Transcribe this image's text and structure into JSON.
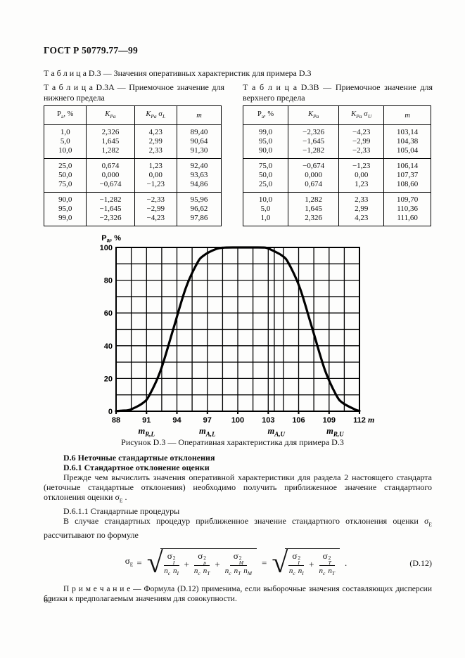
{
  "page": {
    "header": "ГОСТ Р 50779.77—99",
    "number": "62"
  },
  "table_d3_caption": "Т а б л и ц а  D.3 — Значения оперативных характеристик для примера D.3",
  "tables": [
    {
      "caption": "Т а б л и ц а  D.3A — Приемочное значение для нижнего предела",
      "headers": [
        [
          {
            "t": "P"
          },
          {
            "t": "a",
            "sub": true
          },
          {
            "t": ",  %"
          }
        ],
        [
          {
            "t": "K",
            "i": true
          },
          {
            "t": "Pa",
            "sub": true,
            "i": true
          }
        ],
        [
          {
            "t": "K",
            "i": true
          },
          {
            "t": "Pa",
            "sub": true,
            "i": true
          },
          {
            "t": " σ"
          },
          {
            "t": "L",
            "sub": true,
            "i": true
          }
        ],
        [
          {
            "t": "m",
            "i": true
          }
        ]
      ],
      "groups": [
        [
          [
            "1,0",
            "2,326",
            "4,23",
            "89,40"
          ],
          [
            "5,0",
            "1,645",
            "2,99",
            "90,64"
          ],
          [
            "10,0",
            "1,282",
            "2,33",
            "91,30"
          ]
        ],
        [
          [
            "25,0",
            "0,674",
            "1,23",
            "92,40"
          ],
          [
            "50,0",
            "0,000",
            "0,00",
            "93,63"
          ],
          [
            "75,0",
            "−0,674",
            "−1,23",
            "94,86"
          ]
        ],
        [
          [
            "90,0",
            "−1,282",
            "−2,33",
            "95,96"
          ],
          [
            "95,0",
            "−1,645",
            "−2,99",
            "96,62"
          ],
          [
            "99,0",
            "−2,326",
            "−4,23",
            "97,86"
          ]
        ]
      ]
    },
    {
      "caption": "Т а б л и ц а  D.3B — Приемочное значение для верхнего предела",
      "headers": [
        [
          {
            "t": "P"
          },
          {
            "t": "a",
            "sub": true
          },
          {
            "t": ",  %"
          }
        ],
        [
          {
            "t": "K",
            "i": true
          },
          {
            "t": "Pa",
            "sub": true,
            "i": true
          }
        ],
        [
          {
            "t": "K",
            "i": true
          },
          {
            "t": "Pa",
            "sub": true,
            "i": true
          },
          {
            "t": " σ"
          },
          {
            "t": "U",
            "sub": true,
            "i": true
          }
        ],
        [
          {
            "t": "m",
            "i": true
          }
        ]
      ],
      "groups": [
        [
          [
            "99,0",
            "−2,326",
            "−4,23",
            "103,14"
          ],
          [
            "95,0",
            "−1,645",
            "−2,99",
            "104,38"
          ],
          [
            "90,0",
            "−1,282",
            "−2,33",
            "105,04"
          ]
        ],
        [
          [
            "75,0",
            "−0,674",
            "−1,23",
            "106,14"
          ],
          [
            "50,0",
            "0,000",
            "0,00",
            "107,37"
          ],
          [
            "25,0",
            "0,674",
            "1,23",
            "108,60"
          ]
        ],
        [
          [
            "10,0",
            "1,282",
            "2,33",
            "109,70"
          ],
          [
            "5,0",
            "1,645",
            "2,99",
            "110,36"
          ],
          [
            "1,0",
            "2,326",
            "4,23",
            "111,60"
          ]
        ]
      ]
    }
  ],
  "chart_data": {
    "type": "line",
    "caption": "Рисунок D.3 — Оперативная характеристика для примера D.3",
    "ylabel": "Pa, %",
    "xlabel": "m",
    "xlim": [
      88,
      112
    ],
    "ylim": [
      0,
      100
    ],
    "xticks": [
      88,
      91,
      94,
      97,
      100,
      103,
      106,
      109,
      112
    ],
    "yticks": [
      0,
      20,
      40,
      60,
      80,
      100
    ],
    "x_minor_step": 1.5,
    "y_minor_step": 10,
    "extra_vlines": [
      103.6
    ],
    "grid": "on",
    "markers": [
      {
        "base": "m",
        "sub": "R,L",
        "x": 91
      },
      {
        "base": "m",
        "sub": "A,L",
        "x": 97
      },
      {
        "base": "m",
        "sub": "A,U",
        "x": 103.8
      },
      {
        "base": "m",
        "sub": "R,U",
        "x": 109.6
      }
    ],
    "points": [
      [
        88,
        0.1
      ],
      [
        88.6,
        0.4
      ],
      [
        89.4,
        1
      ],
      [
        90.64,
        5
      ],
      [
        91.3,
        10
      ],
      [
        92.4,
        25
      ],
      [
        93.63,
        50
      ],
      [
        94.86,
        75
      ],
      [
        95.96,
        90
      ],
      [
        96.62,
        95
      ],
      [
        97.86,
        99
      ],
      [
        98.7,
        99.9
      ],
      [
        99.5,
        100
      ],
      [
        102,
        100
      ],
      [
        102.7,
        99.9
      ],
      [
        103.14,
        99
      ],
      [
        104.38,
        95
      ],
      [
        105.04,
        90
      ],
      [
        106.14,
        75
      ],
      [
        107.37,
        50
      ],
      [
        108.6,
        25
      ],
      [
        109.7,
        10
      ],
      [
        110.36,
        5
      ],
      [
        111.6,
        1
      ],
      [
        112,
        0.2
      ]
    ]
  },
  "sections": {
    "d6": "D.6 Неточные стандартные отклонения",
    "d61": "D.6.1 Стандартное отклонение оценки",
    "p1": [
      {
        "t": "Прежде чем вычислить значения оперативной характеристики для раздела 2 настоящего стандарта (неточные стандартные отклонения) необходимо получить приближенное значение стандартного отклонения оценки "
      },
      {
        "t": "σ"
      },
      {
        "t": "E",
        "sub": true
      },
      {
        "t": " ."
      }
    ],
    "d611": "D.6.1.1 Стандартные процедуры",
    "p2": [
      {
        "t": "В случае стандартных процедур приближенное значение стандартного отклонения оценки "
      },
      {
        "t": "σ"
      },
      {
        "t": "E",
        "sub": true
      },
      {
        "t": " рассчитывают по формуле"
      }
    ],
    "note": [
      {
        "t": "П р и м е ч а н и е — Формула (D.12) применима, если выборочные значения составляющих дисперсии близки к предполагаемым значениям для совокупности."
      }
    ]
  },
  "formula": {
    "lhs": {
      "base": "σ",
      "sub": "E"
    },
    "eq": "=",
    "plus": "+",
    "tail": ".",
    "number": "(D.12)",
    "roots": [
      {
        "terms": [
          {
            "num": {
              "base": "σ",
              "sub": "I",
              "sup": "2"
            },
            "den": [
              [
                "n",
                "c"
              ],
              [
                "n",
                "I"
              ]
            ]
          },
          {
            "num": {
              "base": "σ",
              "sub": "p",
              "sup": "2"
            },
            "den": [
              [
                "n",
                "c"
              ],
              [
                "n",
                "T"
              ]
            ]
          },
          {
            "num": {
              "base": "σ",
              "sub": "M",
              "sup": "2"
            },
            "den": [
              [
                "n",
                "c"
              ],
              [
                "n",
                "T"
              ],
              [
                "n",
                "M"
              ]
            ]
          }
        ]
      },
      {
        "terms": [
          {
            "num": {
              "base": "σ",
              "sub": "I",
              "sup": "2"
            },
            "den": [
              [
                "n",
                "c"
              ],
              [
                "n",
                "I"
              ]
            ]
          },
          {
            "num": {
              "base": "σ",
              "sub": "T",
              "sup": "2"
            },
            "den": [
              [
                "n",
                "c"
              ],
              [
                "n",
                "T"
              ]
            ]
          }
        ]
      }
    ]
  }
}
